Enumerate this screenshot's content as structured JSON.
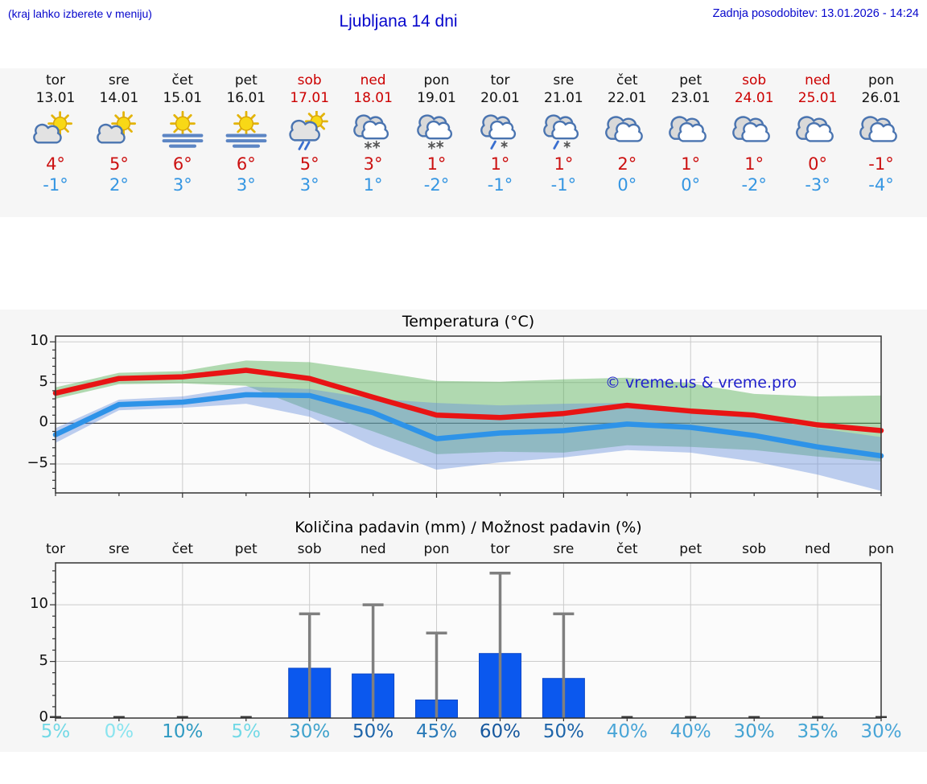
{
  "header": {
    "hint": "(kraj lahko izberete v meniju)",
    "title": "Ljubljana 14 dni",
    "updated": "Zadnja posodobitev: 13.01.2026 - 14:24"
  },
  "watermark": "© vreme.us & vreme.pro",
  "forecast": {
    "days": [
      {
        "name": "tor",
        "date": "13.01",
        "weekend": false,
        "icon": "partly-cloudy-icon",
        "high": "4°",
        "low": "-1°"
      },
      {
        "name": "sre",
        "date": "14.01",
        "weekend": false,
        "icon": "partly-cloudy-icon",
        "high": "5°",
        "low": "2°"
      },
      {
        "name": "čet",
        "date": "15.01",
        "weekend": false,
        "icon": "sun-fog-icon",
        "high": "6°",
        "low": "3°"
      },
      {
        "name": "pet",
        "date": "16.01",
        "weekend": false,
        "icon": "sun-fog-icon",
        "high": "6°",
        "low": "3°"
      },
      {
        "name": "sob",
        "date": "17.01",
        "weekend": true,
        "icon": "sun-cloud-rain-icon",
        "high": "5°",
        "low": "3°"
      },
      {
        "name": "ned",
        "date": "18.01",
        "weekend": true,
        "icon": "cloud-snow-icon",
        "high": "3°",
        "low": "1°"
      },
      {
        "name": "pon",
        "date": "19.01",
        "weekend": false,
        "icon": "cloud-snow-icon",
        "high": "1°",
        "low": "-2°"
      },
      {
        "name": "tor",
        "date": "20.01",
        "weekend": false,
        "icon": "cloud-sleet-icon",
        "high": "1°",
        "low": "-1°"
      },
      {
        "name": "sre",
        "date": "21.01",
        "weekend": false,
        "icon": "cloud-sleet-icon",
        "high": "1°",
        "low": "-1°"
      },
      {
        "name": "čet",
        "date": "22.01",
        "weekend": false,
        "icon": "cloudy-icon",
        "high": "2°",
        "low": "0°"
      },
      {
        "name": "pet",
        "date": "23.01",
        "weekend": false,
        "icon": "cloudy-icon",
        "high": "1°",
        "low": "0°"
      },
      {
        "name": "sob",
        "date": "24.01",
        "weekend": true,
        "icon": "cloudy-icon",
        "high": "1°",
        "low": "-2°"
      },
      {
        "name": "ned",
        "date": "25.01",
        "weekend": true,
        "icon": "cloudy-icon",
        "high": "0°",
        "low": "-3°"
      },
      {
        "name": "pon",
        "date": "26.01",
        "weekend": false,
        "icon": "cloudy-icon",
        "high": "-1°",
        "low": "-4°"
      }
    ]
  },
  "chart_data": [
    {
      "type": "line",
      "title": "Temperatura (°C)",
      "x": [
        "13.01",
        "14.01",
        "15.01",
        "16.01",
        "17.01",
        "18.01",
        "19.01",
        "20.01",
        "21.01",
        "22.01",
        "23.01",
        "24.01",
        "25.01",
        "26.01"
      ],
      "series": [
        {
          "name": "max-temperature",
          "color": "#e81414",
          "values": [
            3.7,
            5.5,
            5.7,
            6.5,
            5.5,
            3.2,
            1.0,
            0.7,
            1.2,
            2.2,
            1.5,
            1.0,
            -0.2,
            -0.9
          ]
        },
        {
          "name": "min-temperature",
          "color": "#2e93e8",
          "values": [
            -1.4,
            2.3,
            2.6,
            3.5,
            3.4,
            1.3,
            -1.9,
            -1.2,
            -0.9,
            -0.1,
            -0.5,
            -1.5,
            -2.9,
            -4.0
          ]
        }
      ],
      "bands": [
        {
          "name": "max-temperature-range",
          "color": "rgba(85,175,85,0.45)",
          "upper": [
            4.4,
            6.2,
            6.4,
            7.7,
            7.5,
            6.4,
            5.2,
            5.1,
            5.4,
            5.6,
            4.9,
            3.6,
            3.3,
            3.4
          ],
          "lower": [
            3.0,
            4.8,
            4.9,
            4.6,
            1.6,
            -1.0,
            -3.8,
            -3.5,
            -3.6,
            -2.7,
            -2.9,
            -3.3,
            -4.1,
            -4.7
          ]
        },
        {
          "name": "min-temperature-range",
          "color": "rgba(100,140,220,0.42)",
          "upper": [
            -0.6,
            2.9,
            3.3,
            4.5,
            4.2,
            3.0,
            2.5,
            2.2,
            2.4,
            2.5,
            1.8,
            0.7,
            -0.6,
            -1.7
          ],
          "lower": [
            -2.4,
            1.6,
            1.9,
            2.4,
            0.8,
            -2.8,
            -5.7,
            -4.8,
            -4.2,
            -3.3,
            -3.6,
            -4.7,
            -6.3,
            -8.3
          ]
        }
      ],
      "ylim": [
        -8.55,
        10.7
      ],
      "yticks": [
        10,
        5,
        0,
        -5
      ],
      "zero_line": true,
      "x_gridline_days": [
        2,
        4,
        6,
        8,
        10,
        12
      ],
      "legend": "none"
    },
    {
      "type": "bar",
      "title": "Količina padavin (mm) / Možnost padavin (%)",
      "categories": [
        "tor",
        "sre",
        "čet",
        "pet",
        "sob",
        "ned",
        "pon",
        "tor",
        "sre",
        "čet",
        "pet",
        "sob",
        "ned",
        "pon"
      ],
      "values": [
        0.05,
        0.05,
        0.05,
        0.05,
        4.4,
        3.9,
        1.6,
        5.7,
        3.5,
        0.05,
        0.05,
        0.05,
        0.05,
        0.05
      ],
      "error_max": [
        null,
        null,
        null,
        null,
        9.2,
        10.0,
        7.5,
        12.8,
        9.2,
        null,
        null,
        null,
        null,
        null
      ],
      "probabilities": [
        {
          "label": "5%",
          "color": "#72d9e6"
        },
        {
          "label": "0%",
          "color": "#8ae4ef"
        },
        {
          "label": "10%",
          "color": "#2f9ac2"
        },
        {
          "label": "5%",
          "color": "#72d9e6"
        },
        {
          "label": "30%",
          "color": "#3ea2cc"
        },
        {
          "label": "50%",
          "color": "#1d64a9"
        },
        {
          "label": "45%",
          "color": "#2a7ab8"
        },
        {
          "label": "60%",
          "color": "#17589e"
        },
        {
          "label": "50%",
          "color": "#1d64a9"
        },
        {
          "label": "40%",
          "color": "#49a5d7"
        },
        {
          "label": "40%",
          "color": "#49a5d7"
        },
        {
          "label": "30%",
          "color": "#45a3d2"
        },
        {
          "label": "35%",
          "color": "#45a6d4"
        },
        {
          "label": "30%",
          "color": "#49a5d7"
        }
      ],
      "bar_color": "#0b58ee",
      "error_color": "#7f7f7f",
      "ylim": [
        0,
        13.7
      ],
      "yticks": [
        10,
        5,
        0
      ],
      "x_gridline_days": [
        2,
        4,
        6,
        8,
        10,
        12
      ]
    }
  ],
  "colors": {
    "header_blue": "#0606cc",
    "high_red": "#cc1111",
    "low_blue": "#3596e2",
    "weekend_red": "#cc0000",
    "figure_bg": "#f6f6f6",
    "plot_bg": "#fbfbfb",
    "grid": "#cbcbcb"
  }
}
